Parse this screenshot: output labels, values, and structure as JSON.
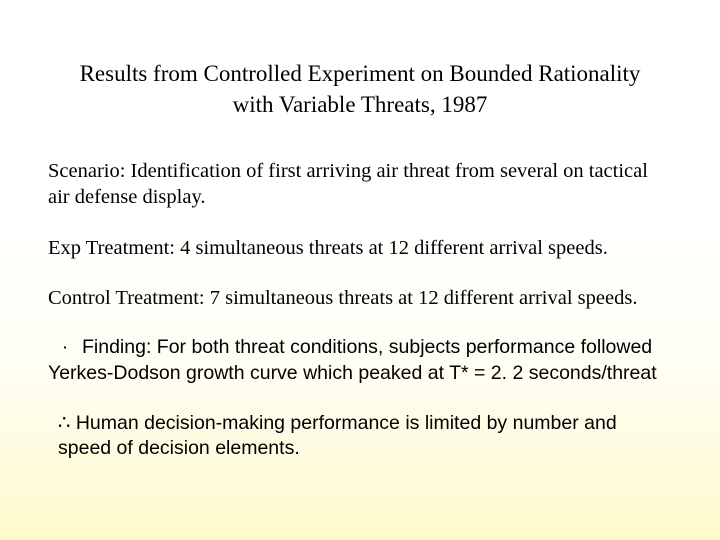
{
  "colors": {
    "text": "#000000",
    "bg_top": "#ffffff",
    "bg_bottom": "#fff9c8"
  },
  "title": {
    "line1": "Results from Controlled Experiment on Bounded Rationality",
    "line2": "with Variable Threats, 1987"
  },
  "scenario": "Scenario: Identification of first arriving air threat from several on tactical air defense display.",
  "exp_treatment": "Exp Treatment: 4 simultaneous threats at 12 different arrival speeds.",
  "control_treatment": "Control Treatment: 7 simultaneous threats at 12 different arrival speeds.",
  "finding": {
    "bullet": "·",
    "text": "Finding: For both threat conditions, subjects performance followed Yerkes-Dodson growth curve which peaked at T* = 2. 2 seconds/threat"
  },
  "conclusion": {
    "symbol": "∴",
    "text": " Human decision-making performance is limited by number and speed of decision elements."
  },
  "fonts": {
    "title_family": "Times New Roman",
    "title_size_pt": 17,
    "body_family": "Times New Roman",
    "body_size_pt": 15,
    "finding_family": "Arial",
    "finding_size_pt": 15
  }
}
